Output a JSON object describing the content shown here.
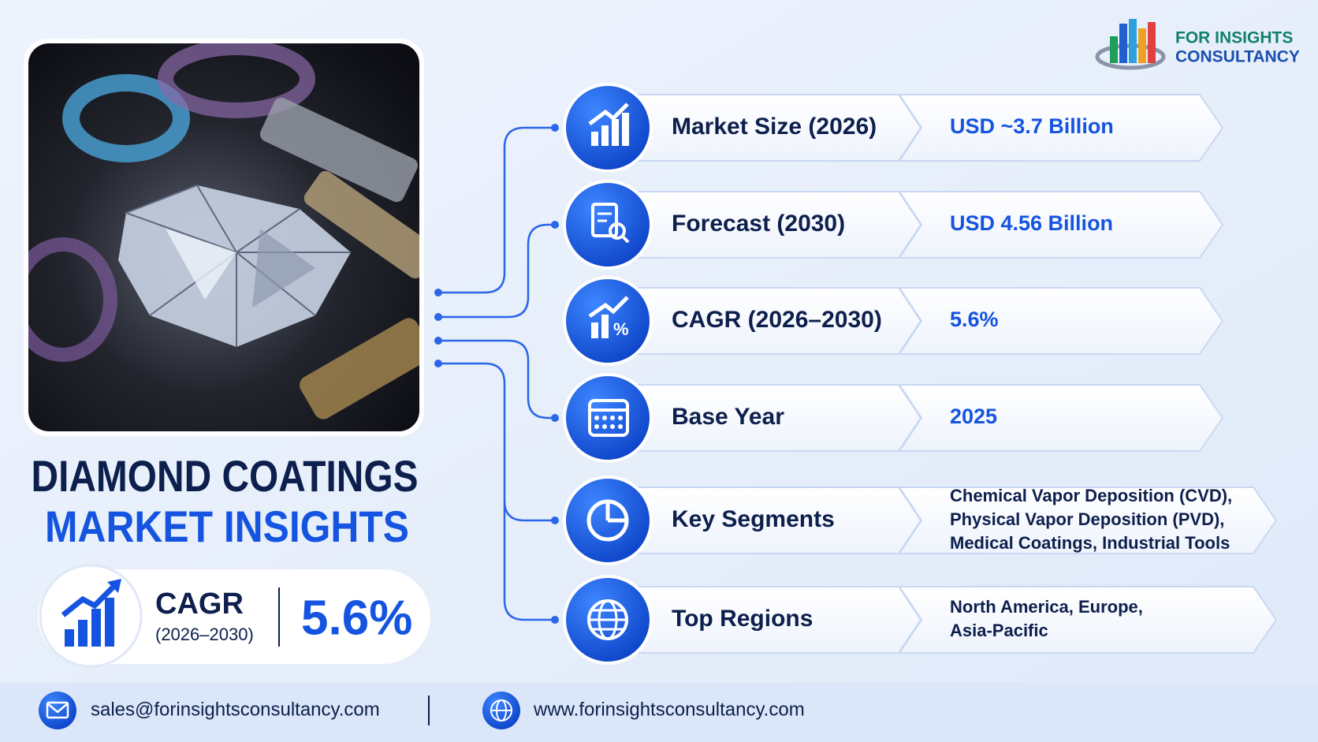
{
  "logo": {
    "line1": "FOR INSIGHTS",
    "line2": "CONSULTANCY"
  },
  "title": {
    "line1": "DIAMOND COATINGS",
    "line2": "MARKET INSIGHTS"
  },
  "cagr_badge": {
    "label": "CAGR",
    "period": "(2026–2030)",
    "value": "5.6%"
  },
  "rows": [
    {
      "label": "Market Size (2026)",
      "value": [
        "USD ~3.7 Billion"
      ]
    },
    {
      "label": "Forecast (2030)",
      "value": [
        "USD 4.56 Billion"
      ]
    },
    {
      "label": "CAGR (2026–2030)",
      "value": [
        "5.6%"
      ]
    },
    {
      "label": "Base Year",
      "value": [
        "2025"
      ]
    },
    {
      "label": "Key Segments",
      "value": [
        "Chemical Vapor Deposition (CVD),",
        "Physical Vapor Deposition (PVD),",
        "Medical Coatings, Industrial Tools"
      ]
    },
    {
      "label": "Top Regions",
      "value": [
        "North America, Europe,",
        "Asia-Pacific"
      ]
    }
  ],
  "footer": {
    "email": "sales@forinsightsconsultancy.com",
    "website": "www.forinsightsconsultancy.com"
  }
}
